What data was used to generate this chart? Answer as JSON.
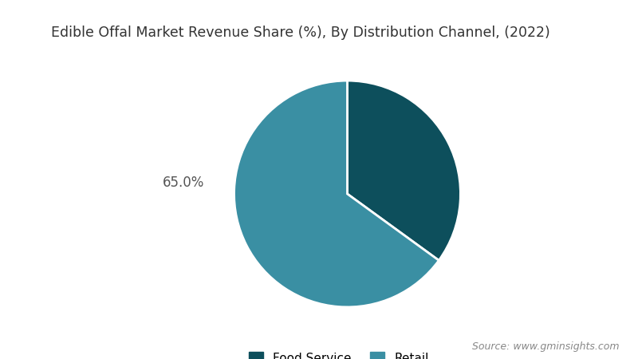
{
  "title": "Edible Offal Market Revenue Share (%), By Distribution Channel, (2022)",
  "slices": [
    35.0,
    65.0
  ],
  "labels": [
    "Food Service",
    "Retail"
  ],
  "colors": [
    "#0d4f5c",
    "#3a8fa3"
  ],
  "label_on_chart": "65.0%",
  "background_color": "#ffffff",
  "source_text": "Source: www.gminsights.com",
  "title_fontsize": 12.5,
  "legend_fontsize": 11,
  "source_fontsize": 9,
  "wedge_edge_color": "#ffffff",
  "wedge_edge_width": 2.0
}
